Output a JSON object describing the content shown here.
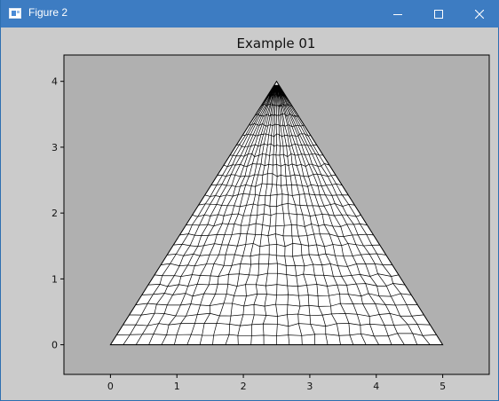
{
  "window": {
    "title": "Figure 2"
  },
  "chart_data": {
    "type": "mesh",
    "title": "Example 01",
    "xlabel": "",
    "ylabel": "",
    "xlim": [
      -0.7,
      5.7
    ],
    "ylim": [
      -0.45,
      4.4
    ],
    "xticks": [
      0,
      1,
      2,
      3,
      4,
      5
    ],
    "yticks": [
      0,
      1,
      2,
      3,
      4
    ],
    "domain_vertices": [
      [
        0,
        0
      ],
      [
        5,
        0
      ],
      [
        2.5,
        4
      ]
    ],
    "mesh_cells": "quadrilateral",
    "colors": {
      "axes_bg": "#b0b0b0",
      "figure_bg": "#cbcbcb",
      "mesh_fill": "#ffffff",
      "mesh_edge": "#000000"
    }
  }
}
